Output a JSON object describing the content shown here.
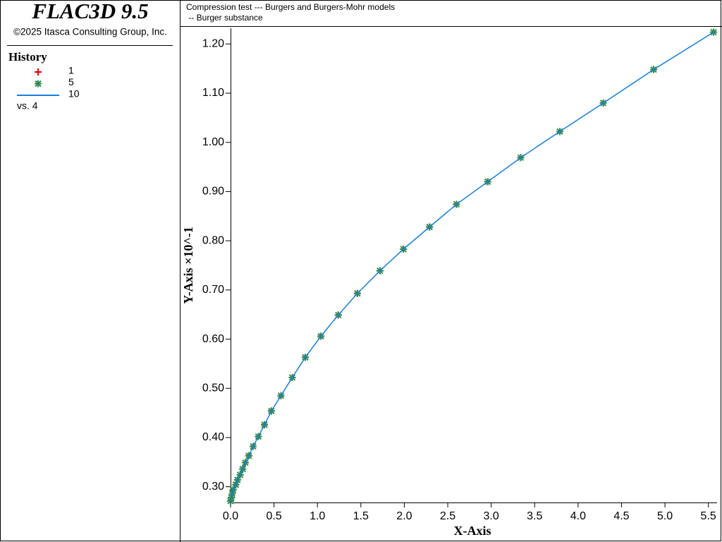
{
  "panel": {
    "app_title": "FLAC3D 9.5",
    "copyright": "©2025 Itasca Consulting Group, Inc.",
    "legend_title": "History",
    "versus": "vs. 4"
  },
  "chart_data": {
    "type": "line",
    "title": "Compression test --- Burgers and Burgers-Mohr models",
    "subtitle": " -- Burger substance",
    "x_label": "X-Axis",
    "y_label": "Y-Axis ×10^-1",
    "x": [
      0.0,
      0.01,
      0.02,
      0.03,
      0.06,
      0.08,
      0.11,
      0.14,
      0.17,
      0.21,
      0.26,
      0.32,
      0.39,
      0.47,
      0.58,
      0.71,
      0.86,
      1.04,
      1.24,
      1.46,
      1.72,
      1.99,
      2.29,
      2.6,
      2.96,
      3.34,
      3.79,
      4.29,
      4.87,
      5.56
    ],
    "series": [
      {
        "name": "1",
        "marker": "plus",
        "color": "#e00000",
        "values": [
          0.271,
          0.278,
          0.286,
          0.294,
          0.304,
          0.314,
          0.324,
          0.336,
          0.349,
          0.363,
          0.382,
          0.402,
          0.426,
          0.454,
          0.485,
          0.522,
          0.563,
          0.606,
          0.649,
          0.693,
          0.739,
          0.783,
          0.828,
          0.874,
          0.92,
          0.969,
          1.022,
          1.08,
          1.148,
          1.224
        ]
      },
      {
        "name": "5",
        "marker": "star",
        "color": "#2e8b57",
        "values": [
          0.271,
          0.278,
          0.286,
          0.294,
          0.304,
          0.314,
          0.324,
          0.336,
          0.349,
          0.363,
          0.382,
          0.402,
          0.426,
          0.454,
          0.485,
          0.522,
          0.563,
          0.606,
          0.649,
          0.693,
          0.739,
          0.783,
          0.828,
          0.874,
          0.92,
          0.969,
          1.022,
          1.08,
          1.148,
          1.224
        ]
      },
      {
        "name": "10",
        "marker": "line",
        "color": "#1a7fd6",
        "values": [
          0.271,
          0.278,
          0.286,
          0.294,
          0.304,
          0.314,
          0.324,
          0.336,
          0.349,
          0.363,
          0.382,
          0.402,
          0.426,
          0.454,
          0.485,
          0.522,
          0.563,
          0.606,
          0.649,
          0.693,
          0.739,
          0.783,
          0.828,
          0.874,
          0.92,
          0.969,
          1.022,
          1.08,
          1.148,
          1.224
        ]
      }
    ],
    "xlim": [
      0,
      5.6
    ],
    "ylim": [
      0.268,
      1.232
    ],
    "xticks": [
      {
        "value": 0,
        "label": "0.0"
      },
      0.5,
      {
        "value": 1,
        "label": "1.0"
      },
      1.5,
      {
        "value": 2,
        "label": "2.0"
      },
      2.5,
      {
        "value": 3,
        "label": "3.0"
      },
      3.5,
      {
        "value": 4,
        "label": "4.0"
      },
      4.5,
      {
        "value": 5,
        "label": "5.0"
      },
      5.5
    ],
    "yticks": [
      {
        "value": 0.3,
        "label": "0.30"
      },
      {
        "value": 0.4,
        "label": "0.40"
      },
      {
        "value": 0.5,
        "label": "0.50"
      },
      {
        "value": 0.6,
        "label": "0.60"
      },
      {
        "value": 0.7,
        "label": "0.70"
      },
      {
        "value": 0.8,
        "label": "0.80"
      },
      {
        "value": 0.9,
        "label": "0.90"
      },
      {
        "value": 1.0,
        "label": "1.00"
      },
      {
        "value": 1.1,
        "label": "1.10"
      },
      {
        "value": 1.2,
        "label": "1.20"
      }
    ]
  }
}
